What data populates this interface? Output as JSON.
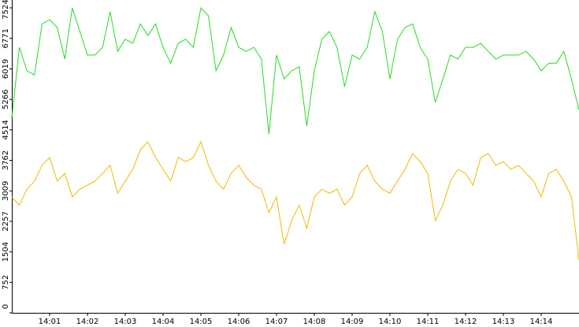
{
  "chart_data": {
    "type": "line",
    "x": [
      0,
      0.2,
      0.4,
      0.6,
      0.8,
      1,
      1.2,
      1.4,
      1.6,
      1.8,
      2,
      2.2,
      2.4,
      2.6,
      2.8,
      3,
      3.2,
      3.4,
      3.6,
      3.8,
      4,
      4.2,
      4.4,
      4.6,
      4.8,
      5,
      5.2,
      5.4,
      5.6,
      5.8,
      6,
      6.2,
      6.4,
      6.6,
      6.8,
      7,
      7.2,
      7.4,
      7.6,
      7.8,
      8,
      8.2,
      8.4,
      8.6,
      8.8,
      9,
      9.2,
      9.4,
      9.6,
      9.8,
      10,
      10.2,
      10.4,
      10.6,
      10.8,
      11,
      11.2,
      11.4,
      11.6,
      11.8,
      12,
      12.2,
      12.4,
      12.6,
      12.8,
      13,
      13.2,
      13.4,
      13.6,
      13.8,
      14,
      14.2,
      14.4,
      14.6,
      14.8,
      15
    ],
    "series": [
      {
        "color": "#22dd22",
        "values": [
          4800,
          6550,
          5970,
          5870,
          7130,
          7230,
          7040,
          6260,
          7520,
          6940,
          6360,
          6360,
          6550,
          7430,
          6450,
          6750,
          6650,
          7130,
          6840,
          7130,
          6550,
          6160,
          6650,
          6750,
          6550,
          7520,
          7330,
          5970,
          6360,
          7040,
          6550,
          6450,
          6550,
          6260,
          4410,
          6360,
          5770,
          5970,
          6070,
          4610,
          5970,
          6750,
          6940,
          6550,
          5580,
          6360,
          6260,
          6550,
          7430,
          6940,
          5770,
          6750,
          7040,
          7130,
          6550,
          6260,
          5190,
          5770,
          6360,
          6260,
          6550,
          6550,
          6650,
          6450,
          6260,
          6360,
          6360,
          6360,
          6450,
          6260,
          5970,
          6160,
          6160,
          6450,
          5770,
          5000
        ]
      },
      {
        "color": "#f5b800",
        "values": [
          2860,
          2660,
          3050,
          3250,
          3640,
          3830,
          3250,
          3440,
          2860,
          3050,
          3150,
          3250,
          3440,
          3640,
          2950,
          3250,
          3540,
          4020,
          4220,
          3830,
          3540,
          3250,
          3830,
          3730,
          3830,
          4220,
          3640,
          3250,
          3050,
          3440,
          3640,
          3340,
          3150,
          3050,
          2470,
          2860,
          1690,
          2270,
          2660,
          2080,
          2860,
          3050,
          2950,
          3050,
          2660,
          2860,
          3440,
          3640,
          3250,
          3050,
          2950,
          3250,
          3540,
          3930,
          3730,
          3440,
          2270,
          2660,
          3250,
          3540,
          3440,
          3150,
          3830,
          3930,
          3640,
          3730,
          3540,
          3640,
          3440,
          3250,
          2860,
          3440,
          3540,
          3250,
          2860,
          1300
        ]
      }
    ],
    "xlim": [
      0,
      15
    ],
    "xticks": [
      {
        "value": 1,
        "label": "14:01"
      },
      {
        "value": 2,
        "label": "14:02"
      },
      {
        "value": 3,
        "label": "14:03"
      },
      {
        "value": 4,
        "label": "14:04"
      },
      {
        "value": 5,
        "label": "14:05"
      },
      {
        "value": 6,
        "label": "14:06"
      },
      {
        "value": 7,
        "label": "14:07"
      },
      {
        "value": 8,
        "label": "14:08"
      },
      {
        "value": 9,
        "label": "14:09"
      },
      {
        "value": 10,
        "label": "14:10"
      },
      {
        "value": 11,
        "label": "14:11"
      },
      {
        "value": 12,
        "label": "14:12"
      },
      {
        "value": 13,
        "label": "14:13"
      },
      {
        "value": 14,
        "label": "14:14"
      }
    ],
    "ylim": [
      0,
      7524
    ],
    "yticks": [
      0,
      752,
      1504,
      2257,
      3009,
      3762,
      4514,
      5266,
      6019,
      6771,
      7524
    ]
  }
}
